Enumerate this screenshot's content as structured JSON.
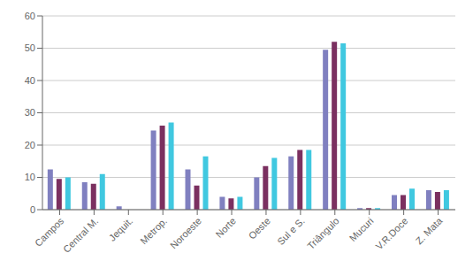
{
  "chart_data": {
    "type": "bar",
    "categories": [
      "Campos",
      "Central M.",
      "Jequit.",
      "Metrop.",
      "Noroeste",
      "Norte",
      "Oeste",
      "Sul e S.",
      "Triângulo",
      "Mucuri",
      "V.R.Doce",
      "Z. Mata"
    ],
    "series": [
      {
        "color": "#8080c0",
        "values": [
          12.5,
          8.5,
          1.0,
          24.5,
          12.5,
          4.0,
          10.0,
          16.5,
          49.5,
          0.5,
          4.5,
          6.0
        ]
      },
      {
        "color": "#7b3060",
        "values": [
          9.5,
          8.0,
          0.0,
          26.0,
          7.5,
          3.5,
          13.5,
          18.5,
          52.0,
          0.5,
          4.5,
          5.5
        ]
      },
      {
        "color": "#40c8e0",
        "values": [
          10.0,
          11.0,
          0.0,
          27.0,
          16.5,
          4.0,
          16.0,
          18.5,
          51.5,
          0.5,
          6.5,
          6.0
        ]
      }
    ],
    "ylim": [
      0,
      60
    ],
    "yticks": [
      0,
      10,
      20,
      30,
      40,
      50,
      60
    ],
    "grid": true
  }
}
